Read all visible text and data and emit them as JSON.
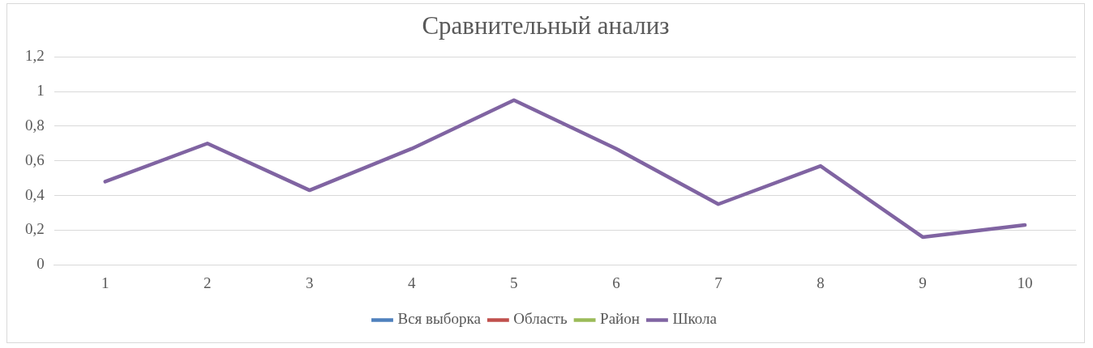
{
  "chart_data": {
    "type": "line",
    "title": "Сравнительный анализ",
    "categories": [
      "1",
      "2",
      "3",
      "4",
      "5",
      "6",
      "7",
      "8",
      "9",
      "10"
    ],
    "series": [
      {
        "name": "Вся выборка",
        "color": "#4f81bd",
        "values": [
          null,
          null,
          null,
          null,
          null,
          null,
          null,
          null,
          null,
          null
        ]
      },
      {
        "name": "Область",
        "color": "#c0504d",
        "values": [
          null,
          null,
          null,
          null,
          null,
          null,
          null,
          null,
          null,
          null
        ]
      },
      {
        "name": "Район",
        "color": "#9bbb59",
        "values": [
          null,
          null,
          null,
          null,
          null,
          null,
          null,
          null,
          null,
          null
        ]
      },
      {
        "name": "Школа",
        "color": "#8064a2",
        "values": [
          0.48,
          0.7,
          0.43,
          0.67,
          0.95,
          0.67,
          0.35,
          0.57,
          0.16,
          0.23
        ]
      }
    ],
    "ylim": [
      0,
      1.2
    ],
    "yticks": [
      0,
      {
        "value": 0.2,
        "label": "0,2"
      },
      {
        "value": 0.4,
        "label": "0,4"
      },
      {
        "value": 0.6,
        "label": "0,6"
      },
      {
        "value": 0.8,
        "label": "0,8"
      },
      1,
      {
        "value": 1.2,
        "label": "1,2"
      }
    ],
    "grid": "y",
    "legend": "bottom",
    "marker": "none",
    "line_style": "solid"
  }
}
